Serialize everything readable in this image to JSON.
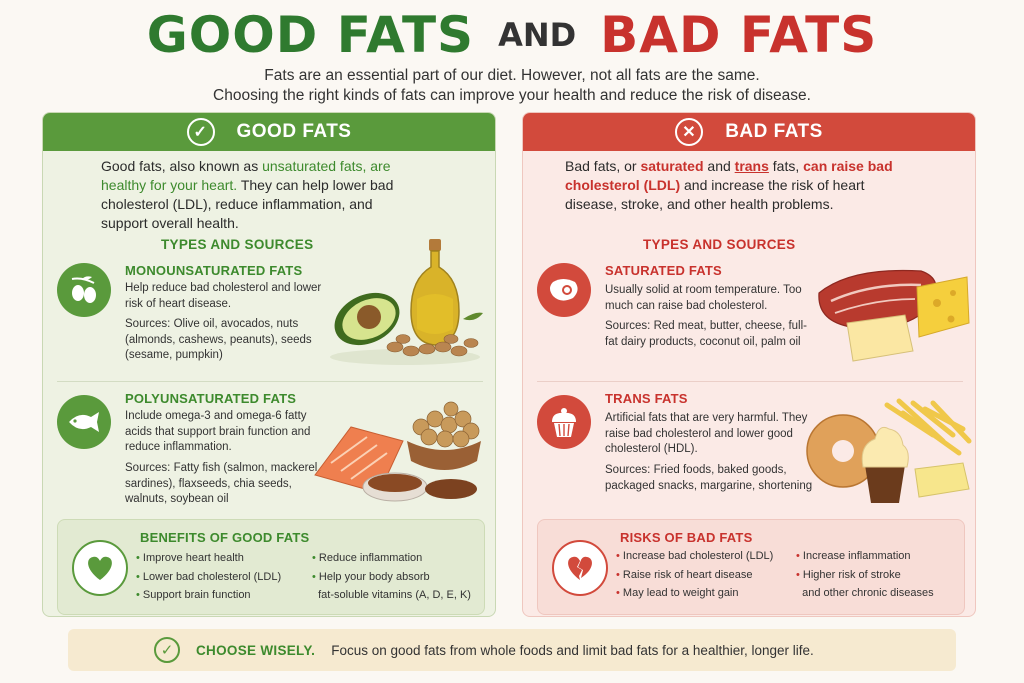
{
  "title": {
    "good": "GOOD FATS",
    "and": "AND",
    "bad": "BAD FATS"
  },
  "intro": {
    "line1": "Fats are an essential part of our diet. However, not all fats are the same.",
    "line2": "Choosing the right kinds of fats can improve your health and reduce the risk of disease."
  },
  "good": {
    "header": "GOOD FATS",
    "icon": "check-circle-icon",
    "desc": {
      "p1": "Good fats, also known as ",
      "h1": "unsaturated fats, are healthy for your heart.",
      "p2": " They can help lower bad cholesterol (LDL), reduce inflammation, and support overall health."
    },
    "types_heading": "TYPES AND SOURCES",
    "sections": [
      {
        "icon": "olive-icon",
        "title": "MONOUNSATURATED FATS",
        "desc": "Help reduce bad cholesterol and lower risk of heart disease.",
        "sources": "Sources: Olive oil, avocados, nuts (almonds, cashews, peanuts), seeds (sesame, pumpkin)",
        "image": "olive-oil-avocado-nuts"
      },
      {
        "icon": "fish-icon",
        "title": "POLYUNSATURATED FATS",
        "desc": "Include omega-3 and omega-6 fatty acids that support brain function and reduce inflammation.",
        "sources": "Sources: Fatty fish (salmon, mackerel, sardines), flaxseeds, chia seeds, walnuts, soybean oil",
        "image": "salmon-walnuts-flaxseeds"
      }
    ],
    "benefits": {
      "title": "BENEFITS OF GOOD FATS",
      "icon": "heart-icon",
      "col1": [
        "Improve heart health",
        "Lower bad cholesterol (LDL)",
        "Support brain function"
      ],
      "col2": [
        "Reduce inflammation",
        "Help your body absorb",
        "fat-soluble vitamins (A, D, E, K)"
      ]
    }
  },
  "bad": {
    "header": "BAD FATS",
    "icon": "x-circle-icon",
    "desc": {
      "p1": "Bad fats, or ",
      "h1": "saturated",
      "p2": " and ",
      "h2": "trans",
      "p3": " fats, ",
      "h3": "can raise bad cholesterol (LDL)",
      "p4": " and increase the risk of heart disease, stroke, and other health problems."
    },
    "types_heading": "TYPES AND SOURCES",
    "sections": [
      {
        "icon": "steak-icon",
        "title": "SATURATED FATS",
        "desc": "Usually solid at room temperature. Too much can raise bad cholesterol.",
        "sources": "Sources: Red meat, butter, cheese, full-fat dairy products, coconut oil, palm oil",
        "image": "steak-butter-cheese"
      },
      {
        "icon": "cupcake-icon",
        "title": "TRANS FATS",
        "desc": "Artificial fats that are very harmful. They raise bad cholesterol and lower good cholesterol (HDL).",
        "sources": "Sources: Fried foods, baked goods, packaged snacks, margarine, shortening",
        "image": "donut-fries-cupcake-margarine"
      }
    ],
    "risks": {
      "title": "RISKS OF BAD FATS",
      "icon": "broken-heart-icon",
      "col1": [
        "Increase bad cholesterol (LDL)",
        "Raise risk of heart disease",
        "May lead to weight gain"
      ],
      "col2": [
        "Increase inflammation",
        "Higher risk of stroke",
        "and other chronic diseases"
      ]
    }
  },
  "footer": {
    "icon": "check-circle-icon",
    "label": "CHOOSE WISELY.",
    "text": "Focus on good fats from whole foods and limit bad fats for a healthier, longer life."
  },
  "colors": {
    "good": "#5a9a3c",
    "good_text": "#3d8a2d",
    "bad": "#d24a3c",
    "bad_text": "#c8322d"
  }
}
